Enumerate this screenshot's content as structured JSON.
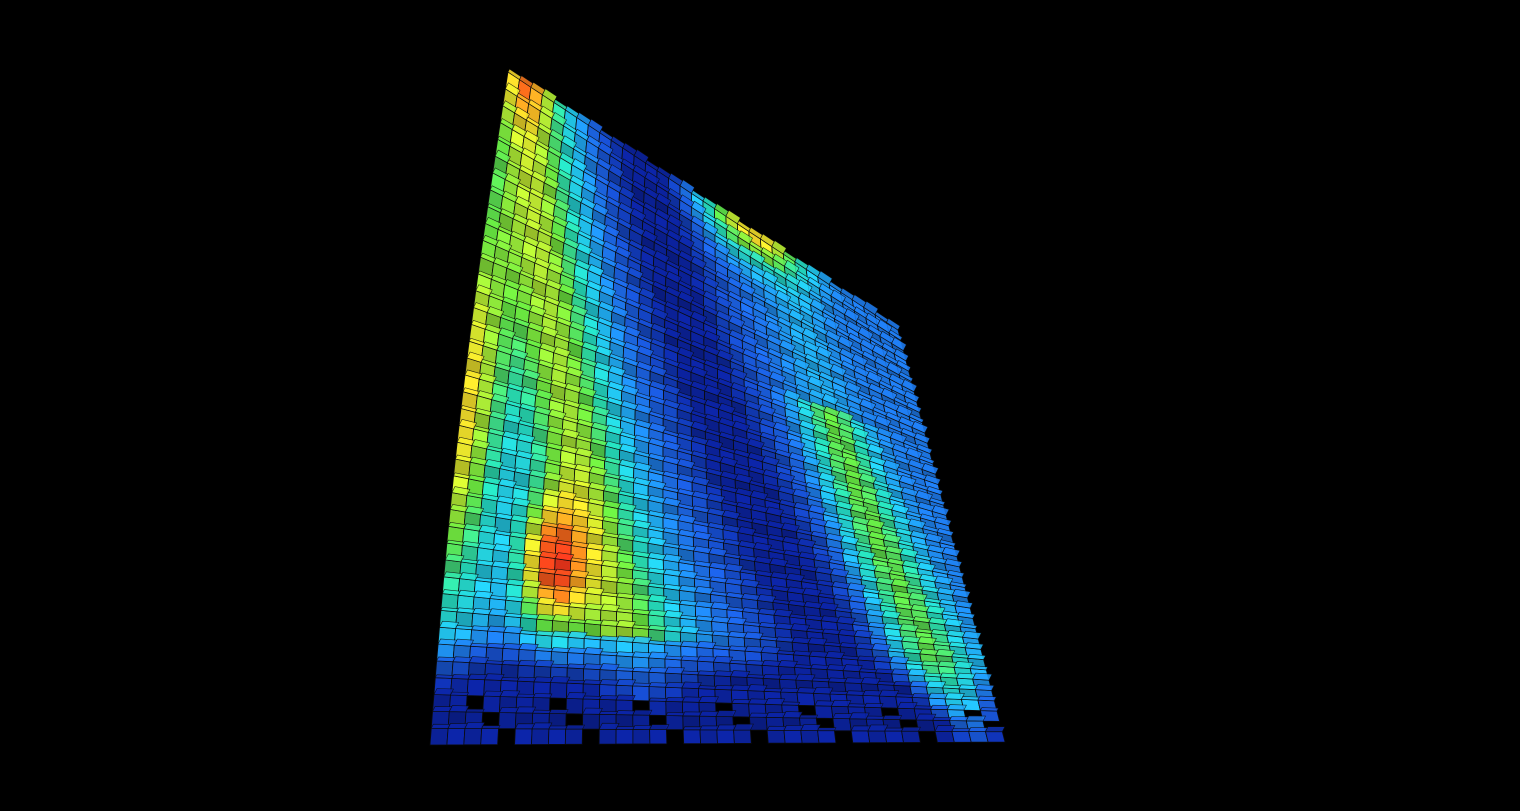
{
  "scene": {
    "background_color": "#000000",
    "subject": "voxel-mesh-heatmap",
    "colormap": [
      "#0a1f8f",
      "#1a5cd0",
      "#1fb3e0",
      "#22c9a8",
      "#5ccf3a",
      "#c6d92a",
      "#f2b623",
      "#f26a1a",
      "#e0301a"
    ],
    "cell_edge_color": "#0b0b0b"
  }
}
